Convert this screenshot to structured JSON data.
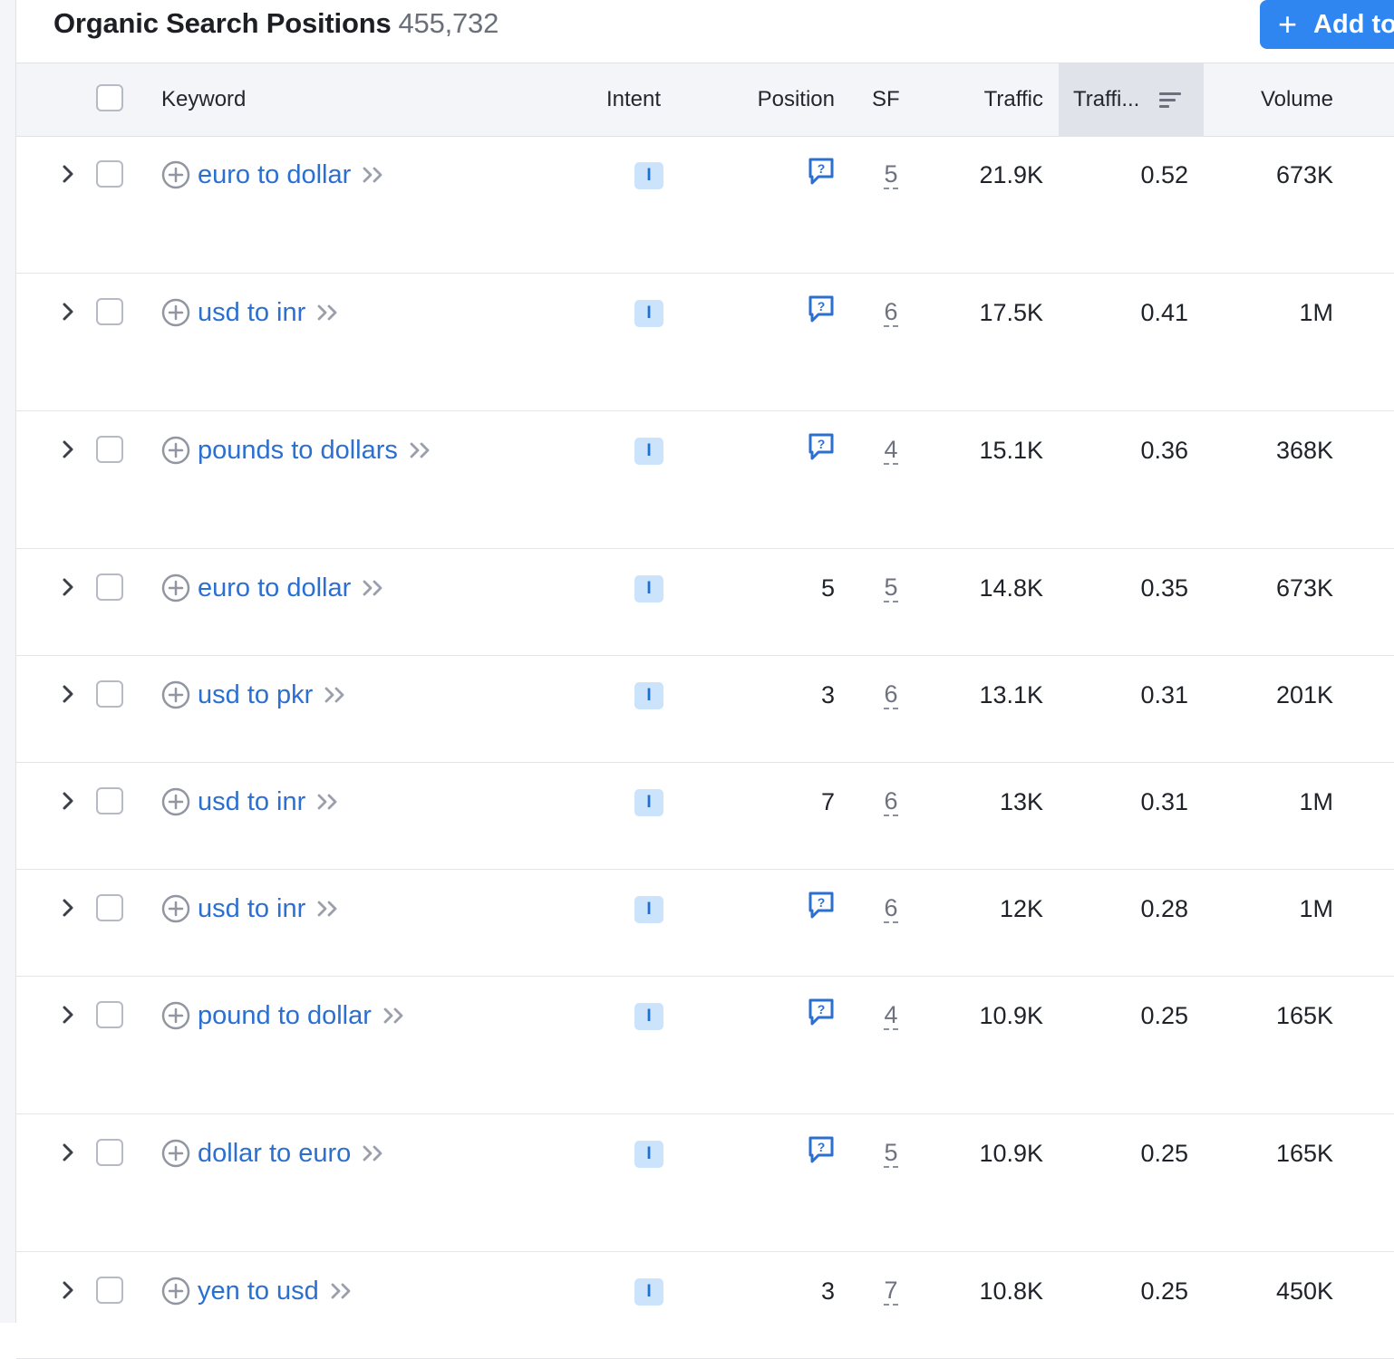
{
  "header": {
    "title": "Organic Search Positions",
    "count": "455,732",
    "add_button": "Add to"
  },
  "columns": {
    "keyword": "Keyword",
    "intent": "Intent",
    "position": "Position",
    "sf": "SF",
    "traffic": "Traffic",
    "traffic_pct": "Traffi...",
    "volume": "Volume"
  },
  "rows": [
    {
      "keyword": "euro to dollar",
      "intent": "I",
      "position": "",
      "position_icon": "serp-feature-icon",
      "sf": "5",
      "traffic": "21.9K",
      "traffic_pct": "0.52",
      "volume": "673K"
    },
    {
      "keyword": "usd to inr",
      "intent": "I",
      "position": "",
      "position_icon": "serp-feature-icon",
      "sf": "6",
      "traffic": "17.5K",
      "traffic_pct": "0.41",
      "volume": "1M"
    },
    {
      "keyword": "pounds to dollars",
      "intent": "I",
      "position": "",
      "position_icon": "serp-feature-icon",
      "sf": "4",
      "traffic": "15.1K",
      "traffic_pct": "0.36",
      "volume": "368K"
    },
    {
      "keyword": "euro to dollar",
      "intent": "I",
      "position": "5",
      "position_icon": "",
      "sf": "5",
      "traffic": "14.8K",
      "traffic_pct": "0.35",
      "volume": "673K"
    },
    {
      "keyword": "usd to pkr",
      "intent": "I",
      "position": "3",
      "position_icon": "",
      "sf": "6",
      "traffic": "13.1K",
      "traffic_pct": "0.31",
      "volume": "201K"
    },
    {
      "keyword": "usd to inr",
      "intent": "I",
      "position": "7",
      "position_icon": "",
      "sf": "6",
      "traffic": "13K",
      "traffic_pct": "0.31",
      "volume": "1M"
    },
    {
      "keyword": "usd to inr",
      "intent": "I",
      "position": "",
      "position_icon": "serp-feature-icon",
      "sf": "6",
      "traffic": "12K",
      "traffic_pct": "0.28",
      "volume": "1M"
    },
    {
      "keyword": "pound to dollar",
      "intent": "I",
      "position": "",
      "position_icon": "serp-feature-icon",
      "sf": "4",
      "traffic": "10.9K",
      "traffic_pct": "0.25",
      "volume": "165K"
    },
    {
      "keyword": "dollar to euro",
      "intent": "I",
      "position": "",
      "position_icon": "serp-feature-icon",
      "sf": "5",
      "traffic": "10.9K",
      "traffic_pct": "0.25",
      "volume": "165K"
    },
    {
      "keyword": "yen to usd",
      "intent": "I",
      "position": "3",
      "position_icon": "",
      "sf": "7",
      "traffic": "10.8K",
      "traffic_pct": "0.25",
      "volume": "450K"
    }
  ],
  "colors": {
    "accent": "#2f86f0",
    "link": "#2b6fd0",
    "intent_bg": "#cbe4fb",
    "header_bg": "#f4f5f9"
  }
}
